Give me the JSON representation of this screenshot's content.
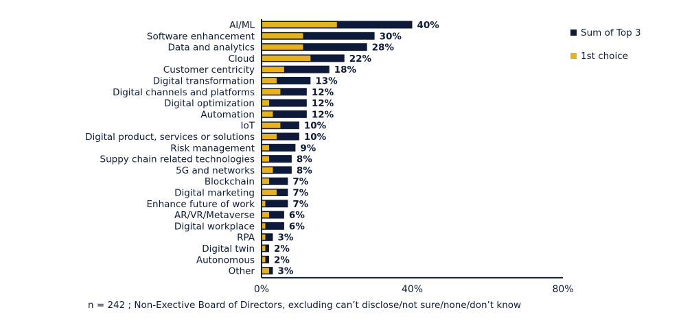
{
  "chart_data": {
    "type": "bar",
    "orientation": "horizontal",
    "categories": [
      "AI/ML",
      "Software enhancement",
      "Data and analytics",
      "Cloud",
      "Customer centricity",
      "Digital transformation",
      "Digital channels and platforms",
      "Digital optimization",
      "Automation",
      "IoT",
      "Digital product, services or solutions",
      "Risk management",
      "Suppy chain related technologies",
      "5G and networks",
      "Blockchain",
      "Digital marketing",
      "Enhance future of work",
      "AR/VR/Metaverse",
      "Digital workplace",
      "RPA",
      "Digital twin",
      "Autonomous",
      "Other"
    ],
    "series": [
      {
        "name": "Sum of Top 3",
        "color": "#0d1a3a",
        "values": [
          40,
          30,
          28,
          22,
          18,
          13,
          12,
          12,
          12,
          10,
          10,
          9,
          8,
          8,
          7,
          7,
          7,
          6,
          6,
          3,
          2,
          2,
          3
        ]
      },
      {
        "name": "1st choice",
        "color": "#e8b21c",
        "values": [
          20,
          11,
          11,
          13,
          6,
          4,
          5,
          2,
          3,
          5,
          4,
          2,
          2,
          3,
          2,
          4,
          1,
          2,
          1,
          1,
          1,
          1,
          2
        ]
      }
    ],
    "data_labels": [
      "40%",
      "30%",
      "28%",
      "22%",
      "18%",
      "13%",
      "12%",
      "12%",
      "12%",
      "10%",
      "10%",
      "9%",
      "8%",
      "8%",
      "7%",
      "7%",
      "7%",
      "6%",
      "6%",
      "3%",
      "2%",
      "2%",
      "3%"
    ],
    "xlim": [
      0,
      80
    ],
    "xticks": [
      "0%",
      "40%",
      "80%"
    ],
    "grid": false,
    "legend_position": "top-right",
    "footnote": "n = 242 ; Non-Exective Board of Directors, excluding can’t disclose/not sure/none/don’t know"
  }
}
